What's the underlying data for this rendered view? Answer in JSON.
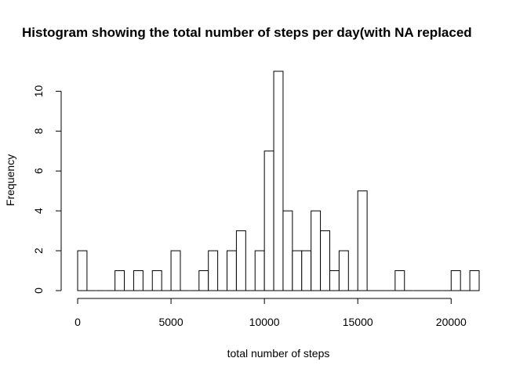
{
  "chart_data": {
    "type": "bar",
    "title": "Histogram showing the total number of steps per day(with NA replaced",
    "xlabel": "total number of steps",
    "ylabel": "Frequency",
    "bin_width": 500,
    "xlim": [
      0,
      21500
    ],
    "ylim": [
      0,
      11
    ],
    "bin_starts": [
      0,
      500,
      1000,
      1500,
      2000,
      2500,
      3000,
      3500,
      4000,
      4500,
      5000,
      5500,
      6000,
      6500,
      7000,
      7500,
      8000,
      8500,
      9000,
      9500,
      10000,
      10500,
      11000,
      11500,
      12000,
      12500,
      13000,
      13500,
      14000,
      14500,
      15000,
      15500,
      16000,
      16500,
      17000,
      17500,
      18000,
      18500,
      19000,
      19500,
      20000,
      20500,
      21000
    ],
    "values": [
      2,
      0,
      0,
      0,
      1,
      0,
      1,
      0,
      1,
      0,
      2,
      0,
      0,
      1,
      2,
      0,
      2,
      3,
      0,
      2,
      7,
      11,
      4,
      2,
      2,
      4,
      3,
      1,
      2,
      0,
      5,
      0,
      0,
      0,
      1,
      0,
      0,
      0,
      0,
      0,
      1,
      0,
      1
    ],
    "x_ticks": [
      0,
      5000,
      10000,
      15000,
      20000
    ],
    "x_tick_labels": [
      "0",
      "5000",
      "10000",
      "15000",
      "20000"
    ],
    "y_ticks": [
      0,
      2,
      4,
      6,
      8,
      10
    ],
    "y_tick_labels": [
      "0",
      "2",
      "4",
      "6",
      "8",
      "10"
    ],
    "grid": false,
    "bar_fill": "#ffffff",
    "bar_stroke": "#000000"
  }
}
